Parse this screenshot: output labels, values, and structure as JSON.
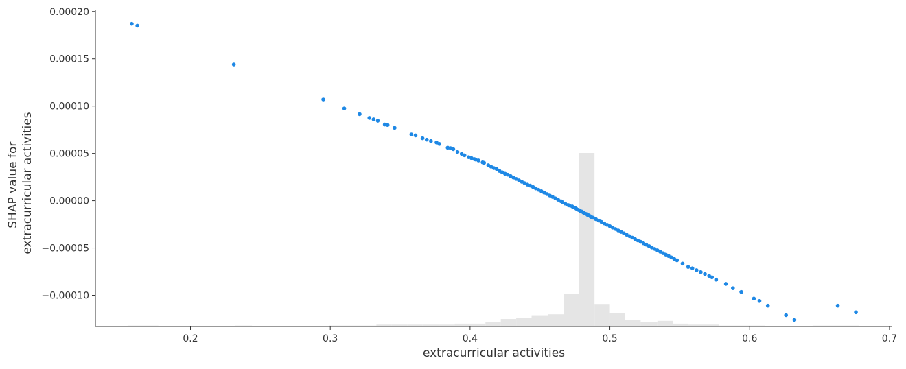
{
  "chart_data": {
    "type": "scatter",
    "title": "",
    "xlabel": "extracurricular activities",
    "ylabel_lines": [
      "SHAP value for",
      "extracurricular activities"
    ],
    "xlim": [
      0.132,
      0.702
    ],
    "ylim": [
      -0.000133,
      0.000202
    ],
    "x_ticks": [
      0.2,
      0.3,
      0.4,
      0.5,
      0.6,
      0.7
    ],
    "x_tick_labels": [
      "0.2",
      "0.3",
      "0.4",
      "0.5",
      "0.6",
      "0.7"
    ],
    "y_ticks": [
      0.0002,
      0.00015,
      0.0001,
      5e-05,
      0.0,
      -5e-05,
      -0.0001
    ],
    "y_tick_labels": [
      "0.00020",
      "0.00015",
      "0.00010",
      "0.00005",
      "0.00000",
      "−0.00005",
      "−0.00010"
    ],
    "grid": false,
    "point_color": "#1e88e5",
    "histogram_color": "#e5e5e5",
    "histogram": {
      "bin_edges": [
        0.155,
        0.166,
        0.177,
        0.188,
        0.199,
        0.21,
        0.221,
        0.232,
        0.244,
        0.255,
        0.266,
        0.277,
        0.288,
        0.299,
        0.311,
        0.322,
        0.333,
        0.344,
        0.355,
        0.366,
        0.378,
        0.389,
        0.4,
        0.411,
        0.422,
        0.433,
        0.444,
        0.456,
        0.467,
        0.478,
        0.489,
        0.5,
        0.511,
        0.522,
        0.534,
        0.545,
        0.556,
        0.567,
        0.578,
        0.589,
        0.6,
        0.611,
        0.622,
        0.633,
        0.645,
        0.656,
        0.667,
        0.678
      ],
      "counts": [
        1,
        1,
        0,
        0,
        0,
        0,
        0,
        1,
        0,
        0,
        0,
        0,
        0,
        1,
        1,
        1,
        2,
        2,
        2,
        2,
        2,
        3,
        3,
        5,
        8,
        9,
        12,
        13,
        35,
        185,
        24,
        14,
        7,
        5,
        6,
        3,
        2,
        2,
        1,
        1,
        1,
        0,
        0,
        0,
        1,
        1,
        1
      ],
      "relative_height": "fraction of the plot height occupied by the tallest bar is encoded in the drawing script"
    },
    "points_x": [
      0.158,
      0.162,
      0.231,
      0.295,
      0.31,
      0.321,
      0.328,
      0.331,
      0.334,
      0.339,
      0.341,
      0.346,
      0.358,
      0.361,
      0.366,
      0.369,
      0.372,
      0.376,
      0.378,
      0.384,
      0.386,
      0.388,
      0.391,
      0.394,
      0.396,
      0.399,
      0.401,
      0.403,
      0.404,
      0.406,
      0.409,
      0.41,
      0.413,
      0.415,
      0.417,
      0.419,
      0.421,
      0.423,
      0.425,
      0.427,
      0.429,
      0.431,
      0.433,
      0.435,
      0.437,
      0.439,
      0.441,
      0.443,
      0.445,
      0.447,
      0.449,
      0.451,
      0.453,
      0.455,
      0.457,
      0.459,
      0.461,
      0.463,
      0.465,
      0.466,
      0.468,
      0.47,
      0.471,
      0.473,
      0.474,
      0.475,
      0.476,
      0.477,
      0.478,
      0.479,
      0.48,
      0.481,
      0.482,
      0.483,
      0.484,
      0.485,
      0.486,
      0.487,
      0.488,
      0.49,
      0.492,
      0.494,
      0.496,
      0.498,
      0.5,
      0.502,
      0.504,
      0.506,
      0.508,
      0.51,
      0.512,
      0.514,
      0.516,
      0.518,
      0.52,
      0.522,
      0.524,
      0.526,
      0.528,
      0.53,
      0.532,
      0.534,
      0.536,
      0.538,
      0.54,
      0.542,
      0.544,
      0.546,
      0.548,
      0.552,
      0.556,
      0.559,
      0.562,
      0.565,
      0.568,
      0.571,
      0.573,
      0.576,
      0.583,
      0.588,
      0.594,
      0.603,
      0.607,
      0.613,
      0.626,
      0.632,
      0.663,
      0.676
    ],
    "points_y": [
      0.000187,
      0.000185,
      0.000144,
      0.000107,
      9.75e-05,
      9.15e-05,
      8.75e-05,
      8.6e-05,
      8.45e-05,
      8.05e-05,
      8e-05,
      7.7e-05,
      7e-05,
      6.9e-05,
      6.6e-05,
      6.45e-05,
      6.3e-05,
      6.15e-05,
      6e-05,
      5.6e-05,
      5.55e-05,
      5.45e-05,
      5.15e-05,
      4.95e-05,
      4.8e-05,
      4.6e-05,
      4.5e-05,
      4.4e-05,
      4.35e-05,
      4.25e-05,
      4.05e-05,
      4e-05,
      3.75e-05,
      3.6e-05,
      3.45e-05,
      3.35e-05,
      3.15e-05,
      3e-05,
      2.85e-05,
      2.75e-05,
      2.6e-05,
      2.45e-05,
      2.3e-05,
      2.15e-05,
      2e-05,
      1.85e-05,
      1.7e-05,
      1.6e-05,
      1.45e-05,
      1.3e-05,
      1.15e-05,
      1e-05,
      8.5e-06,
      7e-06,
      5.5e-06,
      4e-06,
      2.5e-06,
      1e-06,
      -5e-07,
      -1.5e-06,
      -3e-06,
      -4.5e-06,
      -5e-06,
      -6e-06,
      -7e-06,
      -7.5e-06,
      -8.5e-06,
      -9.5e-06,
      -1e-05,
      -1.1e-05,
      -1.15e-05,
      -1.25e-05,
      -1.35e-05,
      -1.4e-05,
      -1.5e-05,
      -1.55e-05,
      -1.65e-05,
      -1.75e-05,
      -1.8e-05,
      -1.95e-05,
      -2.1e-05,
      -2.25e-05,
      -2.4e-05,
      -2.55e-05,
      -2.7e-05,
      -2.85e-05,
      -3e-05,
      -3.15e-05,
      -3.3e-05,
      -3.45e-05,
      -3.6e-05,
      -3.75e-05,
      -3.9e-05,
      -4.05e-05,
      -4.2e-05,
      -4.35e-05,
      -4.5e-05,
      -4.65e-05,
      -4.8e-05,
      -4.95e-05,
      -5.1e-05,
      -5.25e-05,
      -5.4e-05,
      -5.55e-05,
      -5.7e-05,
      -5.85e-05,
      -6e-05,
      -6.15e-05,
      -6.3e-05,
      -6.65e-05,
      -7e-05,
      -7.15e-05,
      -7.35e-05,
      -7.55e-05,
      -7.75e-05,
      -7.95e-05,
      -8.1e-05,
      -8.35e-05,
      -8.8e-05,
      -9.25e-05,
      -9.65e-05,
      -0.0001035,
      -0.000106,
      -0.000111,
      -0.000121,
      -0.000126,
      -0.000111,
      -0.000118
    ]
  }
}
